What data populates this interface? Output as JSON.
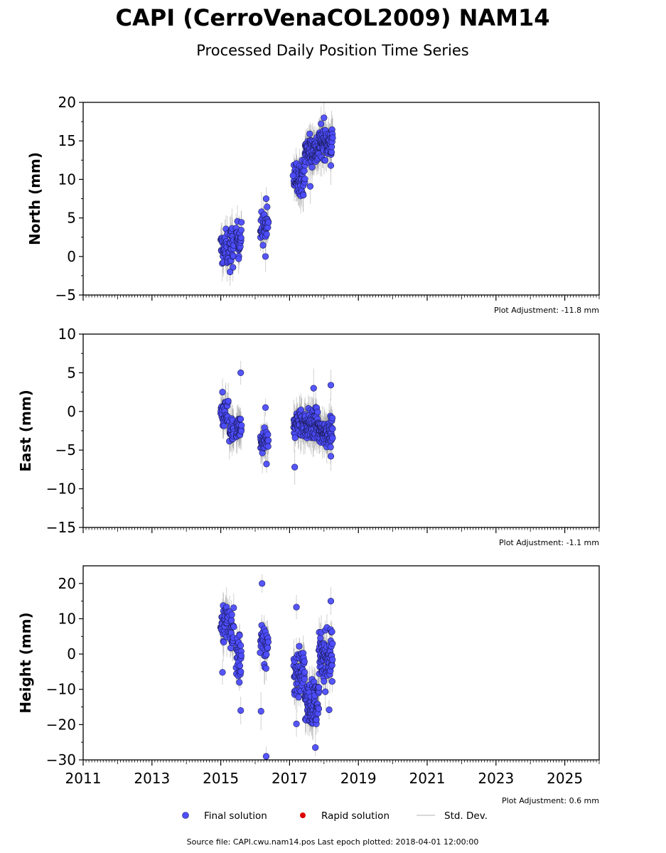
{
  "title": "CAPI (CerroVenaCOL2009) NAM14",
  "subtitle": "Processed Daily Position Time Series",
  "colors": {
    "final": "#4d4dff",
    "final_edge": "#1a1a55",
    "rapid": "#dd0000",
    "stddev": "#9a9a9a"
  },
  "legend": {
    "final": "Final solution",
    "rapid": "Rapid solution",
    "stddev": "Std. Dev."
  },
  "footer": "Source file: CAPI.cwu.nam14.pos  Last epoch plotted: 2018-04-01 12:00:00",
  "chart_data": [
    {
      "type": "scatter",
      "ylabel": "North (mm)",
      "ylim": [
        -5,
        20
      ],
      "yticks": [
        -5,
        0,
        5,
        10,
        15,
        20
      ],
      "xlim": [
        2011,
        2026
      ],
      "adjustment": "Plot Adjustment: -11.8 mm",
      "clusters": [
        {
          "x": [
            2015.0,
            2015.22
          ],
          "y_center": 1.0,
          "y_spread": 1.6,
          "n": 34
        },
        {
          "x": [
            2015.25,
            2015.38
          ],
          "y_center": 1.4,
          "y_spread": 1.8,
          "n": 24
        },
        {
          "x": [
            2015.45,
            2015.6
          ],
          "y_center": 2.3,
          "y_spread": 1.4,
          "n": 30
        },
        {
          "x": [
            2016.15,
            2016.38
          ],
          "y_center": 3.8,
          "y_spread": 1.6,
          "n": 36
        },
        {
          "x": [
            2017.12,
            2017.45
          ],
          "y_center": 10.3,
          "y_spread": 1.5,
          "n": 60
        },
        {
          "x": [
            2017.45,
            2017.85
          ],
          "y_center": 13.8,
          "y_spread": 1.4,
          "n": 90
        },
        {
          "x": [
            2017.85,
            2018.25
          ],
          "y_center": 14.8,
          "y_spread": 1.3,
          "n": 90
        }
      ],
      "extra_points": [
        [
          2015.27,
          -2.0
        ],
        [
          2015.52,
          -0.3
        ],
        [
          2016.32,
          7.5
        ],
        [
          2016.3,
          0.0
        ],
        [
          2017.1,
          10.5
        ],
        [
          2018.0,
          18.0
        ],
        [
          2018.2,
          11.8
        ],
        [
          2017.6,
          9.1
        ]
      ]
    },
    {
      "type": "scatter",
      "ylabel": "East (mm)",
      "ylim": [
        -15,
        10
      ],
      "yticks": [
        -15,
        -10,
        -5,
        0,
        5,
        10
      ],
      "xlim": [
        2011,
        2026
      ],
      "adjustment": "Plot Adjustment: -1.1 mm",
      "clusters": [
        {
          "x": [
            2015.0,
            2015.22
          ],
          "y_center": -0.2,
          "y_spread": 1.1,
          "n": 34
        },
        {
          "x": [
            2015.25,
            2015.38
          ],
          "y_center": -2.8,
          "y_spread": 1.1,
          "n": 24
        },
        {
          "x": [
            2015.45,
            2015.6
          ],
          "y_center": -2.3,
          "y_spread": 1.2,
          "n": 30
        },
        {
          "x": [
            2016.15,
            2016.38
          ],
          "y_center": -4.0,
          "y_spread": 1.2,
          "n": 36
        },
        {
          "x": [
            2017.12,
            2017.45
          ],
          "y_center": -1.6,
          "y_spread": 1.3,
          "n": 60
        },
        {
          "x": [
            2017.45,
            2017.85
          ],
          "y_center": -1.7,
          "y_spread": 1.4,
          "n": 90
        },
        {
          "x": [
            2017.85,
            2018.25
          ],
          "y_center": -2.7,
          "y_spread": 1.2,
          "n": 90
        }
      ],
      "extra_points": [
        [
          2015.58,
          5.0
        ],
        [
          2016.3,
          0.5
        ],
        [
          2017.15,
          -7.2
        ],
        [
          2018.2,
          3.4
        ],
        [
          2017.7,
          3.0
        ],
        [
          2018.2,
          -5.8
        ],
        [
          2016.33,
          -6.8
        ],
        [
          2015.05,
          2.5
        ]
      ]
    },
    {
      "type": "scatter",
      "ylabel": "Height (mm)",
      "ylim": [
        -30,
        25
      ],
      "yticks": [
        -30,
        -20,
        -10,
        0,
        10,
        20
      ],
      "xlim": [
        2011,
        2026
      ],
      "xticks": [
        2011,
        2013,
        2015,
        2017,
        2019,
        2021,
        2023,
        2025
      ],
      "adjustment": "Plot Adjustment: 0.6 mm",
      "clusters": [
        {
          "x": [
            2015.0,
            2015.22
          ],
          "y_center": 9.0,
          "y_spread": 4.5,
          "n": 34
        },
        {
          "x": [
            2015.25,
            2015.38
          ],
          "y_center": 7.0,
          "y_spread": 4.0,
          "n": 24
        },
        {
          "x": [
            2015.45,
            2015.6
          ],
          "y_center": -1.0,
          "y_spread": 5.0,
          "n": 30
        },
        {
          "x": [
            2016.15,
            2016.38
          ],
          "y_center": 2.0,
          "y_spread": 5.0,
          "n": 36
        },
        {
          "x": [
            2017.12,
            2017.45
          ],
          "y_center": -5.0,
          "y_spread": 5.5,
          "n": 60
        },
        {
          "x": [
            2017.45,
            2017.85
          ],
          "y_center": -14.0,
          "y_spread": 4.5,
          "n": 90
        },
        {
          "x": [
            2017.85,
            2018.25
          ],
          "y_center": -1.0,
          "y_spread": 5.0,
          "n": 90
        }
      ],
      "extra_points": [
        [
          2016.2,
          20.0
        ],
        [
          2016.32,
          -29.0
        ],
        [
          2015.58,
          -16.0
        ],
        [
          2016.17,
          -16.2
        ],
        [
          2017.2,
          13.3
        ],
        [
          2017.2,
          -19.8
        ],
        [
          2018.2,
          15.0
        ],
        [
          2018.15,
          -15.8
        ],
        [
          2015.05,
          -5.2
        ],
        [
          2017.75,
          -26.5
        ]
      ]
    }
  ]
}
